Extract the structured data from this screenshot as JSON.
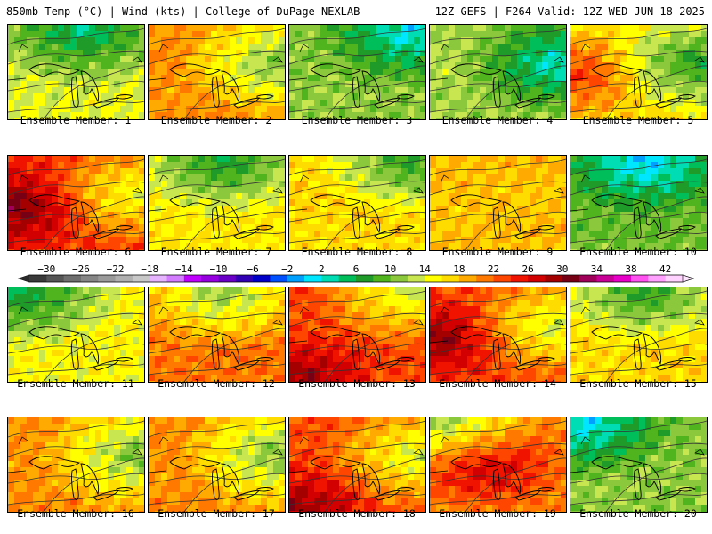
{
  "header": {
    "left": "850mb Temp (°C) | Wind (kts) | College of DuPage NEXLAB",
    "right": "12Z GEFS | F264 Valid: 12Z WED JUN 18 2025"
  },
  "caption_prefix": "Ensemble Member: ",
  "members": [
    {
      "number": "1",
      "label": "Ensemble Member: 1",
      "mean_temp_c": 11,
      "cool_core": "north"
    },
    {
      "number": "2",
      "label": "Ensemble Member: 2",
      "mean_temp_c": 17,
      "cool_core": "east"
    },
    {
      "number": "3",
      "label": "Ensemble Member: 3",
      "mean_temp_c": 8,
      "cool_core": "northeast"
    },
    {
      "number": "4",
      "label": "Ensemble Member: 4",
      "mean_temp_c": 9,
      "cool_core": "east"
    },
    {
      "number": "5",
      "label": "Ensemble Member: 5",
      "mean_temp_c": 14,
      "cool_core": "east",
      "warm_core": "west"
    },
    {
      "number": "6",
      "label": "Ensemble Member: 6",
      "mean_temp_c": 21,
      "cool_core": "east",
      "warm_core": "west"
    },
    {
      "number": "7",
      "label": "Ensemble Member: 7",
      "mean_temp_c": 13,
      "cool_core": "north"
    },
    {
      "number": "8",
      "label": "Ensemble Member: 8",
      "mean_temp_c": 14,
      "cool_core": "northeast"
    },
    {
      "number": "9",
      "label": "Ensemble Member: 9",
      "mean_temp_c": 15,
      "cool_core": "none"
    },
    {
      "number": "10",
      "label": "Ensemble Member: 10",
      "mean_temp_c": 7,
      "cool_core": "north"
    },
    {
      "number": "11",
      "label": "Ensemble Member: 11",
      "mean_temp_c": 12,
      "cool_core": "northwest"
    },
    {
      "number": "12",
      "label": "Ensemble Member: 12",
      "mean_temp_c": 18,
      "cool_core": "north"
    },
    {
      "number": "13",
      "label": "Ensemble Member: 13",
      "mean_temp_c": 20,
      "cool_core": "northeast",
      "warm_core": "southwest"
    },
    {
      "number": "14",
      "label": "Ensemble Member: 14",
      "mean_temp_c": 20,
      "cool_core": "east",
      "warm_core": "west"
    },
    {
      "number": "15",
      "label": "Ensemble Member: 15",
      "mean_temp_c": 14,
      "cool_core": "north"
    },
    {
      "number": "16",
      "label": "Ensemble Member: 16",
      "mean_temp_c": 17,
      "cool_core": "east"
    },
    {
      "number": "17",
      "label": "Ensemble Member: 17",
      "mean_temp_c": 17,
      "cool_core": "east"
    },
    {
      "number": "18",
      "label": "Ensemble Member: 18",
      "mean_temp_c": 20,
      "cool_core": "east",
      "warm_core": "southwest"
    },
    {
      "number": "19",
      "label": "Ensemble Member: 19",
      "mean_temp_c": 18,
      "cool_core": "northwest",
      "warm_core": "center"
    },
    {
      "number": "20",
      "label": "Ensemble Member: 20",
      "mean_temp_c": 8,
      "cool_core": "northwest"
    }
  ],
  "colorbar": {
    "tick_labels": [
      "−30",
      "−26",
      "−22",
      "−18",
      "−14",
      "−10",
      "−6",
      "−2",
      "2",
      "6",
      "10",
      "14",
      "18",
      "22",
      "26",
      "30",
      "34",
      "38",
      "42"
    ],
    "tick_values": [
      -30,
      -26,
      -22,
      -18,
      -14,
      -10,
      -6,
      -2,
      2,
      6,
      10,
      14,
      18,
      22,
      26,
      30,
      34,
      38,
      42
    ],
    "min": -32,
    "max": 44,
    "colors": [
      {
        "from": -32,
        "color": "#3a3a3a"
      },
      {
        "from": -30,
        "color": "#555555"
      },
      {
        "from": -28,
        "color": "#6e6e6e"
      },
      {
        "from": -26,
        "color": "#858585"
      },
      {
        "from": -24,
        "color": "#9a9a9a"
      },
      {
        "from": -22,
        "color": "#b0b0b0"
      },
      {
        "from": -20,
        "color": "#c8c8c8"
      },
      {
        "from": -18,
        "color": "#e6b3ff"
      },
      {
        "from": -16,
        "color": "#d47cff"
      },
      {
        "from": -14,
        "color": "#c000ff"
      },
      {
        "from": -12,
        "color": "#9600e0"
      },
      {
        "from": -10,
        "color": "#6a00c8"
      },
      {
        "from": -8,
        "color": "#3200b4"
      },
      {
        "from": -6,
        "color": "#0000c8"
      },
      {
        "from": -4,
        "color": "#0050ff"
      },
      {
        "from": -2,
        "color": "#00a0ff"
      },
      {
        "from": 0,
        "color": "#00e6ff"
      },
      {
        "from": 2,
        "color": "#00dcb4"
      },
      {
        "from": 4,
        "color": "#00be5a"
      },
      {
        "from": 6,
        "color": "#1e9b28"
      },
      {
        "from": 8,
        "color": "#50b41e"
      },
      {
        "from": 10,
        "color": "#8cc83c"
      },
      {
        "from": 12,
        "color": "#c8e650"
      },
      {
        "from": 14,
        "color": "#ffff00"
      },
      {
        "from": 16,
        "color": "#ffdc00"
      },
      {
        "from": 18,
        "color": "#ffaa00"
      },
      {
        "from": 20,
        "color": "#ff7800"
      },
      {
        "from": 22,
        "color": "#ff4600"
      },
      {
        "from": 24,
        "color": "#f01400"
      },
      {
        "from": 26,
        "color": "#d20000"
      },
      {
        "from": 28,
        "color": "#a50000"
      },
      {
        "from": 30,
        "color": "#780014"
      },
      {
        "from": 32,
        "color": "#a0005a"
      },
      {
        "from": 34,
        "color": "#c80096"
      },
      {
        "from": 36,
        "color": "#e600c8"
      },
      {
        "from": 38,
        "color": "#ff50f0"
      },
      {
        "from": 40,
        "color": "#ffa0ff"
      },
      {
        "from": 42,
        "color": "#ffd2ff"
      }
    ]
  }
}
